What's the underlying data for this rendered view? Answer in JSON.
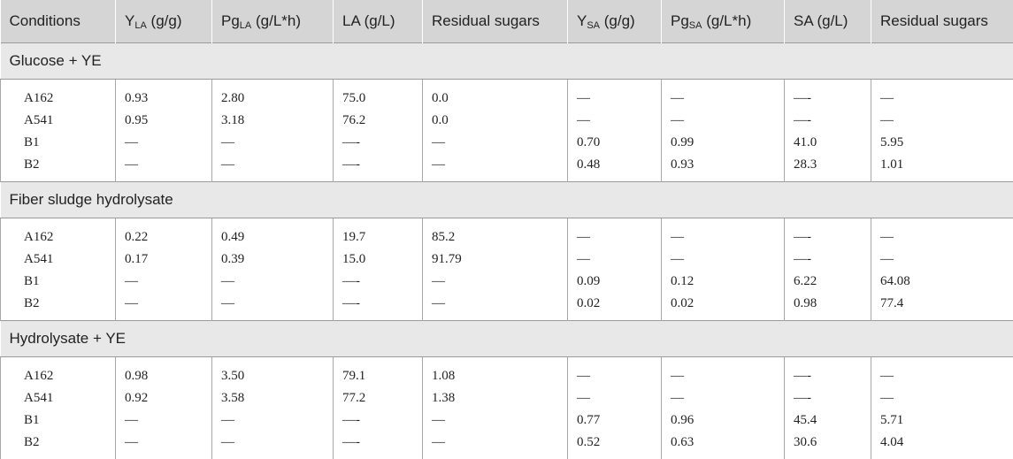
{
  "headers": [
    {
      "main": "Conditions",
      "sub": "",
      "after": ""
    },
    {
      "main": "Y",
      "sub": "LA",
      "after": " (g/g)"
    },
    {
      "main": "Pg",
      "sub": "LA",
      "after": " (g/L*h)"
    },
    {
      "main": "LA (g/L)",
      "sub": "",
      "after": ""
    },
    {
      "main": "Residual sugars",
      "sub": "",
      "after": ""
    },
    {
      "main": "Y",
      "sub": "SA",
      "after": " (g/g)"
    },
    {
      "main": "Pg",
      "sub": "SA",
      "after": " (g/L*h)"
    },
    {
      "main": "SA (g/L)",
      "sub": "",
      "after": ""
    },
    {
      "main": "Residual sugars",
      "sub": "",
      "after": ""
    }
  ],
  "groups": [
    {
      "title": "Glucose + YE",
      "rows": [
        [
          "A162",
          "0.93",
          "2.80",
          "75.0",
          "0.0",
          "—",
          "—",
          "—-",
          "—"
        ],
        [
          "A541",
          "0.95",
          "3.18",
          "76.2",
          "0.0",
          "—",
          "—",
          "—-",
          "—"
        ],
        [
          "B1",
          "—",
          "—",
          "—-",
          "—",
          "0.70",
          "0.99",
          "41.0",
          "5.95"
        ],
        [
          "B2",
          "—",
          "—",
          "—-",
          "—",
          "0.48",
          "0.93",
          "28.3",
          "1.01"
        ]
      ]
    },
    {
      "title": "Fiber sludge hydrolysate",
      "rows": [
        [
          "A162",
          "0.22",
          "0.49",
          "19.7",
          "85.2",
          "—",
          "—",
          "—-",
          "—"
        ],
        [
          "A541",
          "0.17",
          "0.39",
          "15.0",
          "91.79",
          "—",
          "—",
          "—-",
          "—"
        ],
        [
          "B1",
          "—",
          "—",
          "—-",
          "—",
          "0.09",
          "0.12",
          "6.22",
          "64.08"
        ],
        [
          "B2",
          "—",
          "—",
          "—-",
          "—",
          "0.02",
          "0.02",
          "0.98",
          "77.4"
        ]
      ]
    },
    {
      "title": "Hydrolysate + YE",
      "rows": [
        [
          "A162",
          "0.98",
          "3.50",
          "79.1",
          "1.08",
          "—",
          "—",
          "—-",
          "—"
        ],
        [
          "A541",
          "0.92",
          "3.58",
          "77.2",
          "1.38",
          "—",
          "—",
          "—-",
          "—"
        ],
        [
          "B1",
          "—",
          "—",
          "—-",
          "—",
          "0.77",
          "0.96",
          "45.4",
          "5.71"
        ],
        [
          "B2",
          "—",
          "—",
          "—-",
          "—",
          "0.52",
          "0.63",
          "30.6",
          "4.04"
        ]
      ]
    }
  ]
}
